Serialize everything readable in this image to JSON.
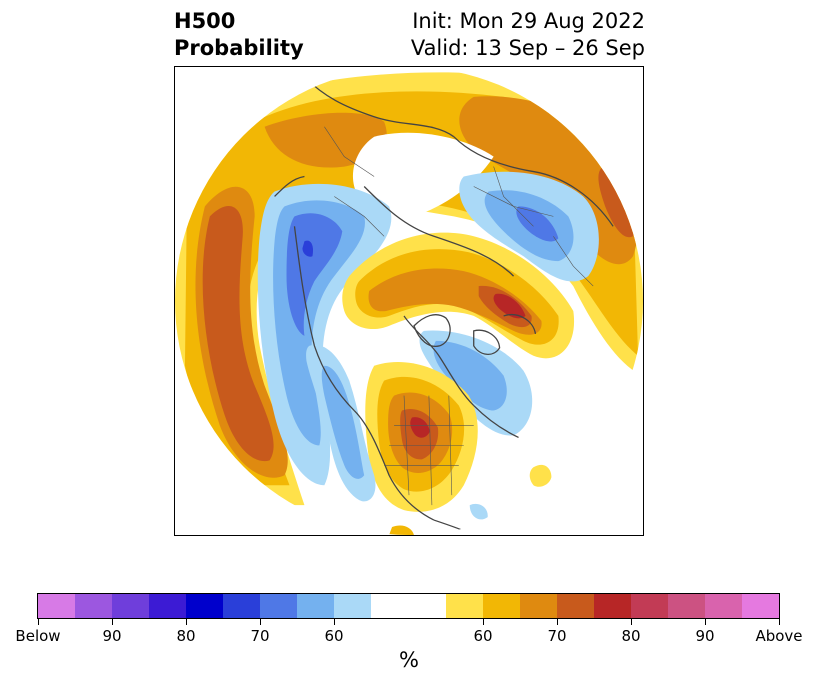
{
  "title": {
    "left_line1": "H500",
    "left_line2": "Probability",
    "right_line1": "Init: Mon 29 Aug 2022",
    "right_line2": "Valid: 13 Sep – 26 Sep"
  },
  "map": {
    "projection": "north-polar-stereographic",
    "field": "500 hPa height probability",
    "colors": {
      "above_60": "#ffe14a",
      "above_65": "#f2b705",
      "above_70": "#df8a10",
      "above_75": "#c85a1c",
      "above_80": "#b72626",
      "below_60": "#aad9f7",
      "below_65": "#74b1ef",
      "below_70": "#4f78e6",
      "below_75": "#2a3fd9",
      "coastline": "#444444"
    }
  },
  "colorbar": {
    "unit": "%",
    "segments": [
      "#d77ae6",
      "#9c57e0",
      "#6f3edb",
      "#3c1bd4",
      "#0000cc",
      "#2a3fd9",
      "#4f78e6",
      "#74b1ef",
      "#aad9f7",
      "#ffffff",
      "#ffe14a",
      "#f2b705",
      "#df8a10",
      "#c85a1c",
      "#b72626",
      "#c23b55",
      "#cc5282",
      "#d963ad",
      "#e579e0"
    ],
    "tick_labels": [
      "Below",
      "90",
      "80",
      "70",
      "60",
      "60",
      "70",
      "80",
      "90",
      "Above"
    ]
  }
}
